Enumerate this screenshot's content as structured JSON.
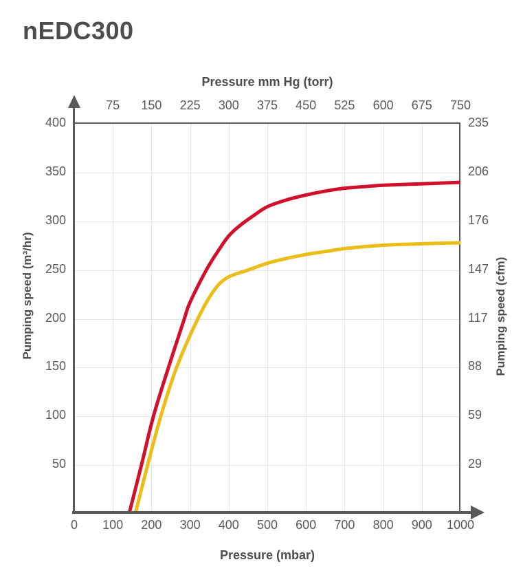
{
  "title": "nEDC300",
  "colors": {
    "red_series": "#d1112b",
    "yellow_series": "#eabd18",
    "axis": "#58595b",
    "gridline": "#e4e4e4",
    "tick_text": "#595959",
    "label_text": "#4d4d4d",
    "background": "#ffffff"
  },
  "chart_data": {
    "type": "line",
    "title": "nEDC300",
    "grid": true,
    "legend_position": "none",
    "bottom_axis": {
      "label": "Pressure (mbar)",
      "range": [
        0,
        1000
      ],
      "ticks": [
        0,
        100,
        200,
        300,
        400,
        500,
        600,
        700,
        800,
        900,
        1000
      ]
    },
    "top_axis": {
      "label": "Pressure mm Hg (torr)",
      "range": [
        0,
        750
      ],
      "ticks": [
        75,
        150,
        225,
        300,
        375,
        450,
        525,
        600,
        675,
        750
      ]
    },
    "left_axis": {
      "label": "Pumping speed (m³/hr)",
      "range": [
        0,
        400
      ],
      "ticks": [
        400,
        350,
        300,
        250,
        200,
        150,
        100,
        50
      ],
      "gridline_step": 50
    },
    "right_axis": {
      "label": "Pumping speed (cfm)",
      "ticks": [
        235,
        206,
        176,
        147,
        117,
        88,
        59,
        29
      ]
    },
    "series": [
      {
        "name": "yellow",
        "color_key": "yellow_series",
        "points": [
          [
            158,
            0
          ],
          [
            190,
            50
          ],
          [
            224,
            100
          ],
          [
            265,
            150
          ],
          [
            320,
            200
          ],
          [
            360,
            228
          ],
          [
            395,
            242
          ],
          [
            450,
            250
          ],
          [
            500,
            257
          ],
          [
            550,
            262
          ],
          [
            600,
            266
          ],
          [
            650,
            269
          ],
          [
            700,
            272
          ],
          [
            800,
            275.5
          ],
          [
            900,
            277
          ],
          [
            1000,
            278
          ]
        ]
      },
      {
        "name": "red",
        "color_key": "red_series",
        "points": [
          [
            142,
            0
          ],
          [
            174,
            50
          ],
          [
            205,
            100
          ],
          [
            244,
            150
          ],
          [
            285,
            200
          ],
          [
            300,
            217
          ],
          [
            342,
            250
          ],
          [
            370,
            268
          ],
          [
            400,
            285
          ],
          [
            430,
            296
          ],
          [
            465,
            306
          ],
          [
            500,
            315
          ],
          [
            550,
            322
          ],
          [
            600,
            327
          ],
          [
            650,
            331
          ],
          [
            700,
            334
          ],
          [
            750,
            335.5
          ],
          [
            800,
            337
          ],
          [
            900,
            338.5
          ],
          [
            1000,
            340
          ]
        ]
      }
    ]
  }
}
